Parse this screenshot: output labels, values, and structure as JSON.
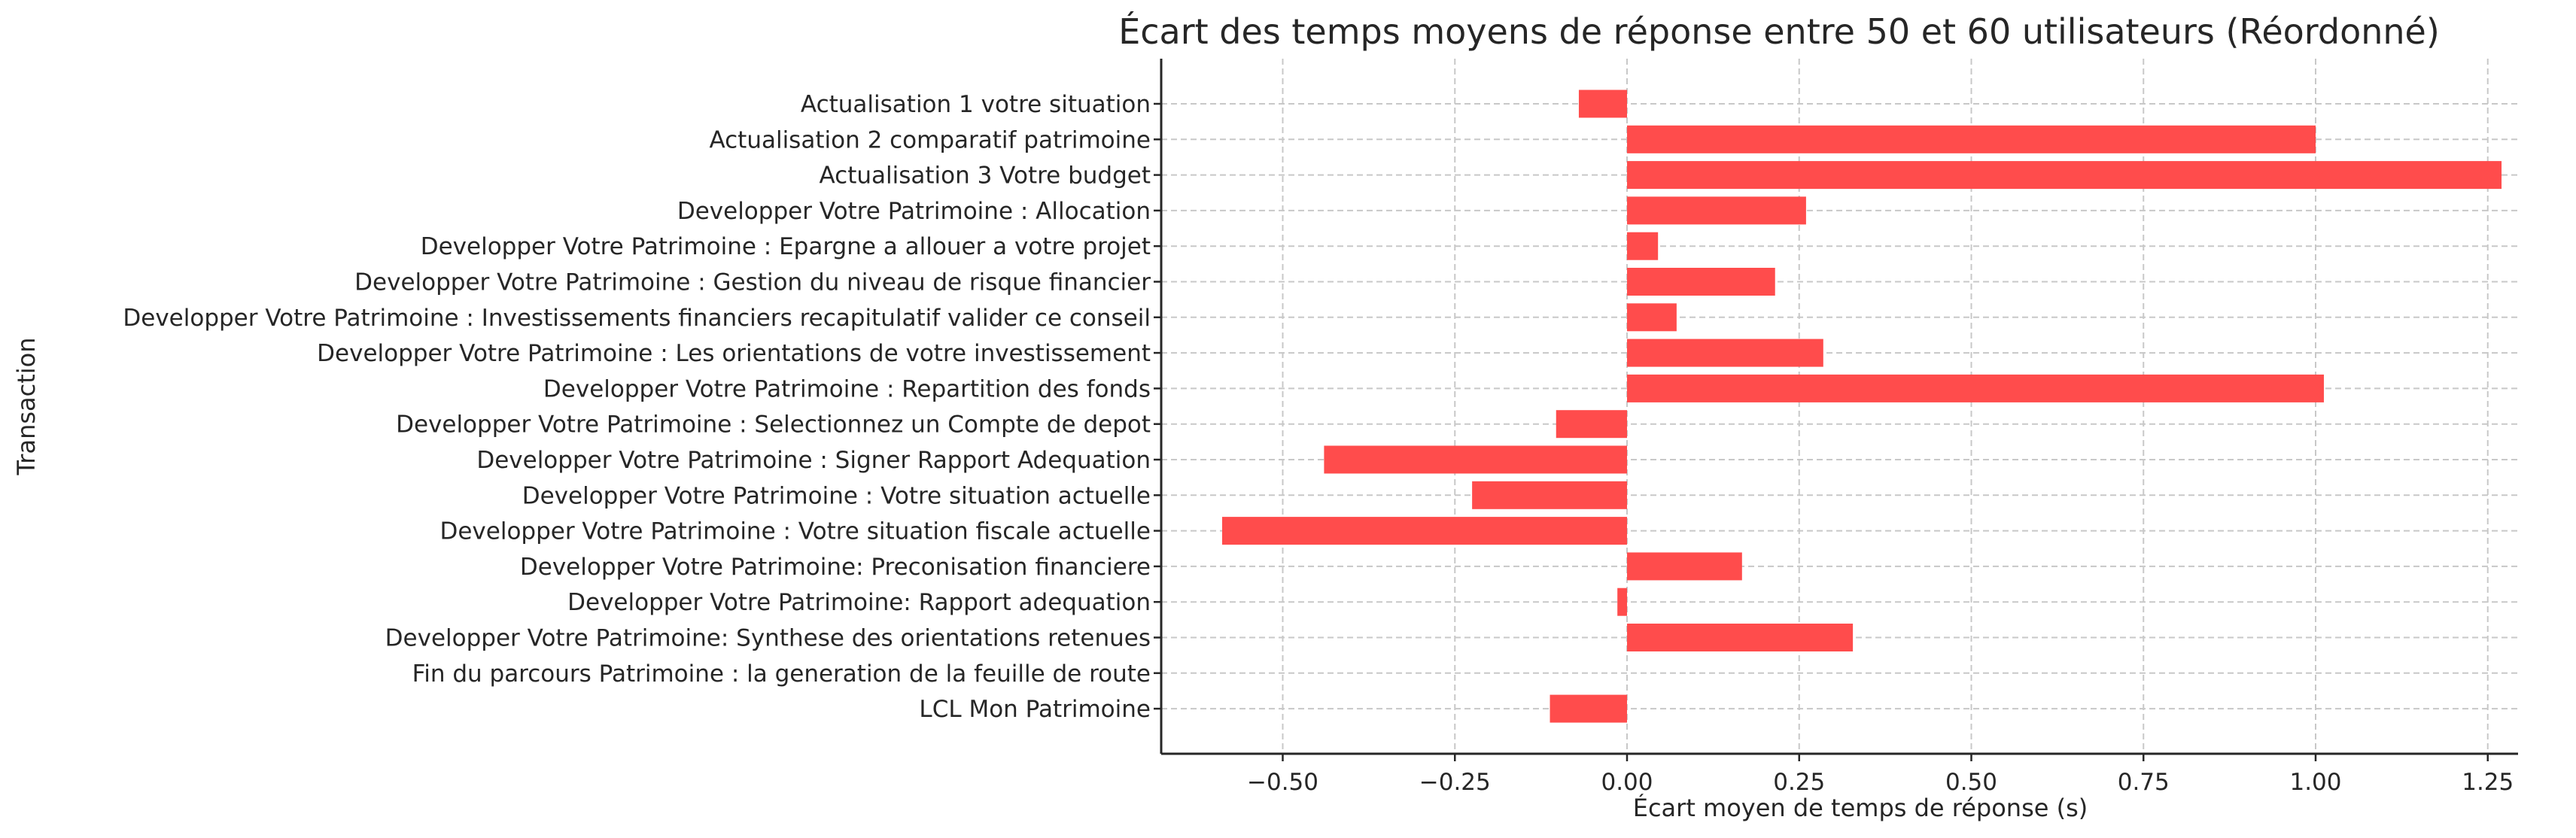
{
  "chart_data": {
    "type": "bar",
    "orientation": "horizontal",
    "title": "Écart des temps moyens de réponse entre 50 et 60 utilisateurs (Réordonné)",
    "xlabel": "Écart moyen de temps de réponse (s)",
    "ylabel": "Transaction",
    "xlim": [
      -0.7,
      1.3
    ],
    "xticks": [
      -0.5,
      -0.25,
      0.0,
      0.25,
      0.5,
      0.75,
      1.0,
      1.25
    ],
    "xtick_labels": [
      "−0.50",
      "−0.25",
      "0.00",
      "0.25",
      "0.50",
      "0.75",
      "1.00",
      "1.25"
    ],
    "grid": true,
    "bar_color": "#ff4c4c",
    "categories": [
      "Actualisation 1 votre situation",
      "Actualisation 2 comparatif patrimoine",
      "Actualisation 3 Votre budget",
      "Developper Votre Patrimoine : Allocation",
      "Developper Votre Patrimoine : Epargne a allouer a votre projet",
      "Developper Votre Patrimoine : Gestion du niveau de risque financier",
      "Developper Votre Patrimoine : Investissements financiers recapitulatif valider ce conseil",
      "Developper Votre Patrimoine : Les orientations de votre investissement",
      "Developper Votre Patrimoine : Repartition des fonds",
      "Developper Votre Patrimoine : Selectionnez un Compte de depot",
      "Developper Votre Patrimoine : Signer Rapport Adequation",
      "Developper Votre Patrimoine : Votre situation actuelle",
      "Developper Votre Patrimoine : Votre situation fiscale actuelle",
      "Developper Votre Patrimoine: Preconisation financiere",
      "Developper Votre Patrimoine: Rapport adequation",
      "Developper Votre Patrimoine: Synthese des orientations retenues",
      "Fin du parcours Patrimoine : la generation de la feuille de route",
      "LCL Mon Patrimoine"
    ],
    "values": [
      -0.07,
      1.0,
      1.27,
      0.26,
      0.045,
      0.215,
      0.072,
      0.285,
      1.012,
      -0.103,
      -0.44,
      -0.225,
      -0.588,
      0.167,
      -0.014,
      0.328,
      0.0,
      -0.112
    ]
  }
}
